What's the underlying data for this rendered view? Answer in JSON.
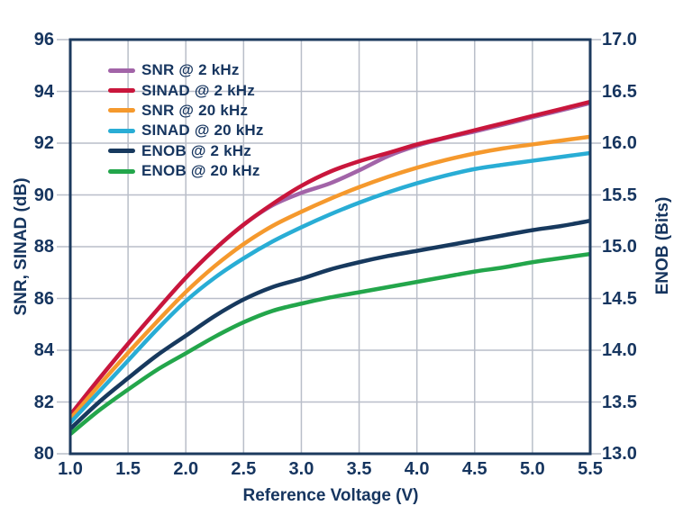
{
  "chart_data": {
    "type": "line",
    "title": "",
    "xlabel": "Reference Voltage (V)",
    "ylabel_left": "SNR, SINAD (dB)",
    "ylabel_right": "ENOB (Bits)",
    "xlim": [
      1.0,
      5.5
    ],
    "ylim_left": [
      80,
      96
    ],
    "ylim_right": [
      13.0,
      17.0
    ],
    "grid": true,
    "legend_position": "top-left-inside",
    "x_tick_labels": [
      "1.0",
      "1.5",
      "2.0",
      "2.5",
      "3.0",
      "3.5",
      "4.0",
      "4.5",
      "5.0",
      "5.5"
    ],
    "y_left_tick_labels": [
      "96",
      "94",
      "92",
      "90",
      "88",
      "86",
      "84",
      "82",
      "80"
    ],
    "y_right_tick_labels": [
      "17.0",
      "16.5",
      "16.0",
      "15.5",
      "15.0",
      "14.5",
      "14.0",
      "13.5",
      "13.0"
    ],
    "x": [
      1.0,
      1.25,
      1.5,
      1.75,
      2.0,
      2.25,
      2.5,
      2.75,
      3.0,
      3.25,
      3.5,
      3.75,
      4.0,
      4.25,
      4.5,
      4.75,
      5.0,
      5.25,
      5.5
    ],
    "series": [
      {
        "name": "SNR @ 2 kHz",
        "axis": "left",
        "color": "#a264a8",
        "values": [
          81.5,
          82.9,
          84.25,
          85.55,
          86.8,
          87.9,
          88.85,
          89.6,
          90.08,
          90.45,
          90.95,
          91.5,
          91.9,
          92.2,
          92.45,
          92.72,
          93.0,
          93.27,
          93.55
        ]
      },
      {
        "name": "SINAD @ 2 kHz",
        "axis": "left",
        "color": "#c9163c",
        "values": [
          81.5,
          82.9,
          84.25,
          85.55,
          86.8,
          87.9,
          88.85,
          89.65,
          90.35,
          90.9,
          91.3,
          91.62,
          91.95,
          92.22,
          92.5,
          92.77,
          93.05,
          93.32,
          93.6
        ]
      },
      {
        "name": "SNR @ 20 kHz",
        "axis": "left",
        "color": "#f5992d",
        "values": [
          81.35,
          82.65,
          83.9,
          85.1,
          86.25,
          87.25,
          88.1,
          88.8,
          89.35,
          89.85,
          90.3,
          90.7,
          91.05,
          91.35,
          91.6,
          91.8,
          91.95,
          92.1,
          92.25
        ]
      },
      {
        "name": "SINAD @ 20 kHz",
        "axis": "left",
        "color": "#29add5",
        "values": [
          81.2,
          82.4,
          83.6,
          84.8,
          85.9,
          86.8,
          87.55,
          88.2,
          88.75,
          89.25,
          89.7,
          90.1,
          90.45,
          90.75,
          91.0,
          91.17,
          91.32,
          91.47,
          91.62
        ]
      },
      {
        "name": "ENOB @ 2 kHz",
        "axis": "right",
        "color": "#17395e",
        "values": [
          13.24,
          13.5,
          13.73,
          13.95,
          14.14,
          14.33,
          14.49,
          14.61,
          14.69,
          14.78,
          14.85,
          14.91,
          14.96,
          15.01,
          15.06,
          15.11,
          15.16,
          15.2,
          15.25
        ]
      },
      {
        "name": "ENOB @ 20 kHz",
        "axis": "right",
        "color": "#23a64b",
        "values": [
          13.19,
          13.42,
          13.62,
          13.81,
          13.97,
          14.13,
          14.27,
          14.38,
          14.45,
          14.51,
          14.56,
          14.61,
          14.66,
          14.71,
          14.76,
          14.8,
          14.85,
          14.89,
          14.93
        ]
      }
    ],
    "colors": {
      "axis_text": "#16355f",
      "grid": "#b9bec9",
      "border": "#1c3a5e",
      "background": "#ffffff"
    }
  }
}
